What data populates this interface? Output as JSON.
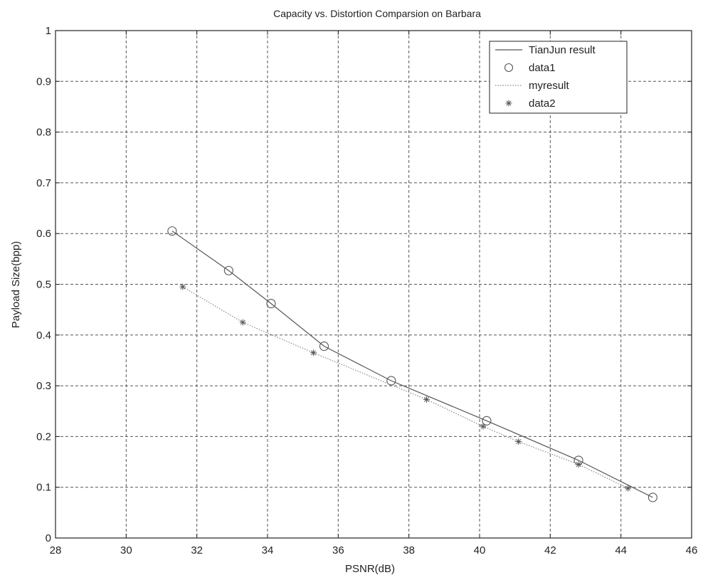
{
  "chart_data": {
    "type": "line",
    "title": "Capacity vs. Distortion Comparsion on Barbara",
    "xlabel": "PSNR(dB)",
    "ylabel": "Payload Size(bpp)",
    "xlim": [
      28,
      46
    ],
    "ylim": [
      0,
      1
    ],
    "xticks": [
      28,
      30,
      32,
      34,
      36,
      38,
      40,
      42,
      44,
      46
    ],
    "yticks": [
      0,
      0.1,
      0.2,
      0.3,
      0.4,
      0.5,
      0.6,
      0.7,
      0.8,
      0.9,
      1
    ],
    "ytick_labels": [
      "0",
      "0.1",
      "0.2",
      "0.3",
      "0.4",
      "0.5",
      "0.6",
      "0.7",
      "0.8",
      "0.9",
      "1"
    ],
    "grid": true,
    "legend_position": "top-right",
    "series": [
      {
        "name": "TianJun result",
        "style": "line",
        "color": "#555555",
        "x": [
          31.3,
          32.9,
          34.1,
          35.6,
          37.5,
          40.2,
          42.8,
          44.9
        ],
        "y": [
          0.605,
          0.527,
          0.462,
          0.378,
          0.31,
          0.231,
          0.153,
          0.08
        ]
      },
      {
        "name": "data1",
        "style": "marker-circle",
        "color": "#555555",
        "x": [
          31.3,
          32.9,
          34.1,
          35.6,
          37.5,
          40.2,
          42.8,
          44.9
        ],
        "y": [
          0.605,
          0.527,
          0.462,
          0.378,
          0.31,
          0.231,
          0.153,
          0.08
        ]
      },
      {
        "name": "myresult",
        "style": "line-dotted",
        "color": "#888888",
        "x": [
          31.6,
          33.3,
          35.3,
          38.5,
          40.1,
          41.1,
          42.8,
          44.2
        ],
        "y": [
          0.495,
          0.425,
          0.365,
          0.273,
          0.22,
          0.19,
          0.145,
          0.098
        ]
      },
      {
        "name": "data2",
        "style": "marker-star",
        "color": "#555555",
        "x": [
          31.6,
          33.3,
          35.3,
          38.5,
          40.1,
          41.1,
          42.8,
          44.2
        ],
        "y": [
          0.495,
          0.425,
          0.365,
          0.273,
          0.22,
          0.19,
          0.145,
          0.098
        ]
      }
    ]
  }
}
